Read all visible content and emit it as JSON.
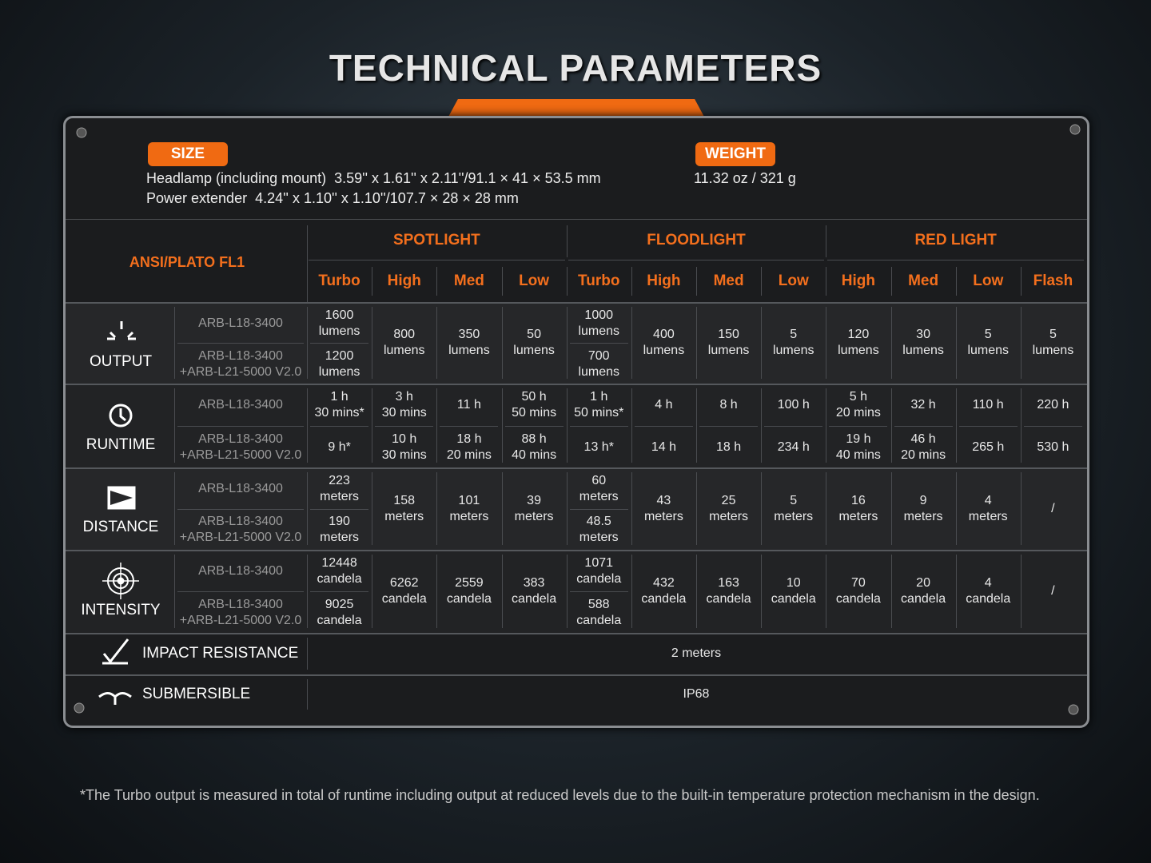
{
  "title": "TECHNICAL PARAMETERS",
  "size": {
    "label": "SIZE",
    "lines": [
      "Headlamp (including mount)  3.59'' x 1.61'' x 2.11''/91.1 × 41 × 53.5 mm",
      "Power extender  4.24'' x 1.10'' x 1.10''/107.7 × 28 × 28 mm"
    ]
  },
  "weight": {
    "label": "WEIGHT",
    "value": "11.32 oz / 321 g"
  },
  "table": {
    "corner": "ANSI/PLATO FL1",
    "groups": [
      {
        "name": "SPOTLIGHT",
        "modes": [
          "Turbo",
          "High",
          "Med",
          "Low"
        ]
      },
      {
        "name": "FLOODLIGHT",
        "modes": [
          "Turbo",
          "High",
          "Med",
          "Low"
        ]
      },
      {
        "name": "RED LIGHT",
        "modes": [
          "High",
          "Med",
          "Low",
          "Flash"
        ]
      }
    ],
    "sections": [
      {
        "name": "OUTPUT",
        "configs": [
          "ARB-L18-3400",
          "ARB-L18-3400\n+ARB-L21-5000 V2.0"
        ],
        "cells": [
          [
            "1600\nlumens",
            "1200\nlumens"
          ],
          "800\nlumens",
          "350\nlumens",
          "50\nlumens",
          [
            "1000\nlumens",
            "700\nlumens"
          ],
          "400\nlumens",
          "150\nlumens",
          "5\nlumens",
          "120\nlumens",
          "30\nlumens",
          "5\nlumens",
          "5\nlumens"
        ]
      },
      {
        "name": "RUNTIME",
        "configs": [
          "ARB-L18-3400",
          "ARB-L18-3400\n+ARB-L21-5000 V2.0"
        ],
        "cells": [
          [
            "1 h\n30 mins*",
            "9 h*"
          ],
          [
            "3 h\n30 mins",
            "10 h\n30 mins"
          ],
          [
            "11 h",
            "18 h\n20 mins"
          ],
          [
            "50 h\n50 mins",
            "88 h\n40 mins"
          ],
          [
            "1 h\n50 mins*",
            "13 h*"
          ],
          [
            "4 h",
            "14 h"
          ],
          [
            "8 h",
            "18 h"
          ],
          [
            "100 h",
            "234 h"
          ],
          [
            "5 h\n20 mins",
            "19 h\n40 mins"
          ],
          [
            "32 h",
            "46 h\n20 mins"
          ],
          [
            "110 h",
            "265 h"
          ],
          [
            "220 h",
            "530 h"
          ]
        ]
      },
      {
        "name": "DISTANCE",
        "configs": [
          "ARB-L18-3400",
          "ARB-L18-3400\n+ARB-L21-5000 V2.0"
        ],
        "cells": [
          [
            "223\nmeters",
            "190\nmeters"
          ],
          "158\nmeters",
          "101\nmeters",
          "39\nmeters",
          [
            "60\nmeters",
            "48.5\nmeters"
          ],
          "43\nmeters",
          "25\nmeters",
          "5\nmeters",
          "16\nmeters",
          "9\nmeters",
          "4\nmeters",
          "/"
        ]
      },
      {
        "name": "INTENSITY",
        "configs": [
          "ARB-L18-3400",
          "ARB-L18-3400\n+ARB-L21-5000 V2.0"
        ],
        "cells": [
          [
            "12448\ncandela",
            "9025\ncandela"
          ],
          "6262\ncandela",
          "2559\ncandela",
          "383\ncandela",
          [
            "1071\ncandela",
            "588\ncandela"
          ],
          "432\ncandela",
          "163\ncandela",
          "10\ncandela",
          "70\ncandela",
          "20\ncandela",
          "4\ncandela",
          "/"
        ]
      }
    ],
    "extras": [
      {
        "name": "IMPACT RESISTANCE",
        "value": "2 meters"
      },
      {
        "name": "SUBMERSIBLE",
        "value": "IP68"
      }
    ]
  },
  "footnote": "*The Turbo output is measured in total of runtime including output at reduced levels due to the built-in temperature protection mechanism in the design."
}
